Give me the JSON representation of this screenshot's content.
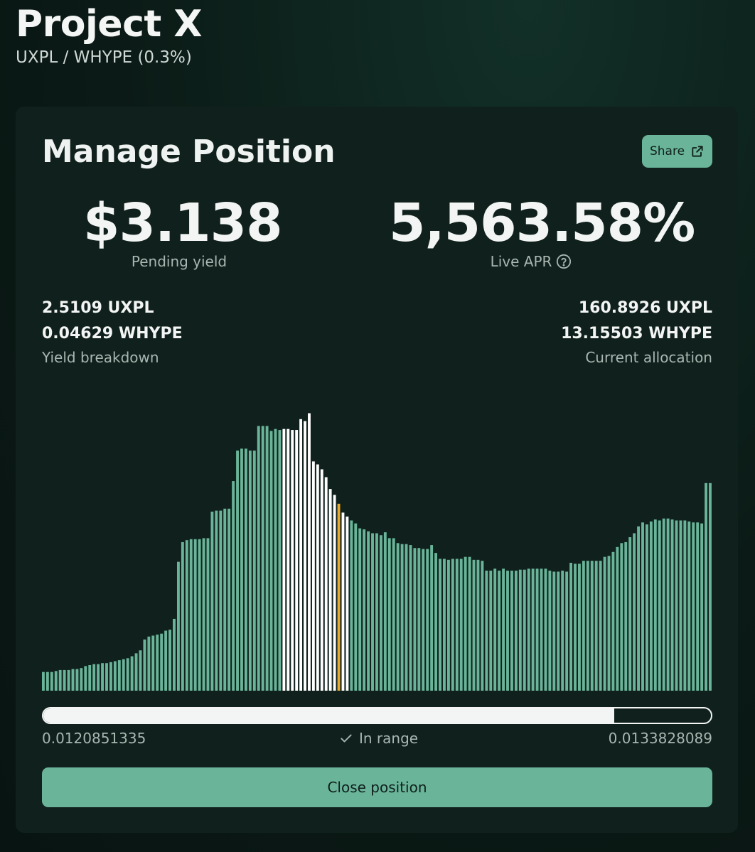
{
  "header": {
    "title": "Project X",
    "pair": "UXPL / WHYPE (0.3%)"
  },
  "card": {
    "title": "Manage Position",
    "share_label": "Share",
    "pending_yield": {
      "value": "$3.138",
      "label": "Pending yield"
    },
    "live_apr": {
      "value": "5,563.58%",
      "label": "Live APR"
    },
    "yield_breakdown": {
      "token_a": "2.5109 UXPL",
      "token_b": "0.04629 WHYPE",
      "caption": "Yield breakdown"
    },
    "current_allocation": {
      "token_a": "160.8926 UXPL",
      "token_b": "13.15503 WHYPE",
      "caption": "Current allocation"
    },
    "range": {
      "min": "0.0120851335",
      "max": "0.0133828089",
      "status": "In range",
      "fill_fraction": 0.855
    },
    "close_label": "Close position"
  },
  "colors": {
    "bar_out_of_range": "#6ab59a",
    "bar_in_range": "#ffffff",
    "bar_current": "#e8a92c",
    "accent": "#6ab59a"
  },
  "icons": {
    "share": "external-link-icon",
    "apr_help": "question-circle-icon",
    "status": "check-icon"
  },
  "chart_data": {
    "type": "bar",
    "values": [
      19,
      19,
      19,
      20,
      21,
      21,
      21,
      22,
      22,
      23,
      25,
      26,
      27,
      27,
      28,
      28,
      29,
      30,
      31,
      32,
      33,
      35,
      38,
      41,
      52,
      55,
      56,
      57,
      58,
      61,
      62,
      73,
      131,
      151,
      153,
      154,
      154,
      154,
      155,
      155,
      182,
      183,
      183,
      185,
      185,
      213,
      244,
      246,
      246,
      244,
      244,
      269,
      269,
      269,
      264,
      266,
      265,
      266,
      266,
      265,
      265,
      276,
      274,
      282,
      233,
      230,
      225,
      217,
      205,
      199,
      190,
      181,
      177,
      173,
      170,
      165,
      164,
      162,
      160,
      160,
      158,
      161,
      155,
      155,
      150,
      149,
      149,
      148,
      145,
      145,
      144,
      144,
      148,
      140,
      134,
      134,
      133,
      134,
      134,
      134,
      136,
      136,
      133,
      133,
      132,
      122,
      122,
      124,
      122,
      124,
      122,
      122,
      122,
      123,
      123,
      124,
      124,
      124,
      124,
      124,
      122,
      121,
      121,
      122,
      121,
      130,
      129,
      129,
      132,
      132,
      132,
      132,
      132,
      136,
      137,
      141,
      146,
      150,
      151,
      156,
      160,
      167,
      171,
      169,
      172,
      174,
      173,
      175,
      175,
      174,
      173,
      173,
      173,
      172,
      171,
      171,
      170,
      211,
      211
    ],
    "highlight_range_start": 57,
    "highlight_range_end": 72,
    "current_index": 70
  }
}
